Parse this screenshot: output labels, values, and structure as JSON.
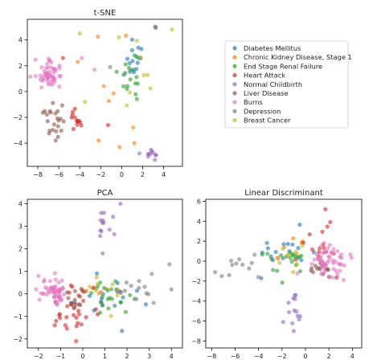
{
  "categories": [
    {
      "name": "Diabetes Mellitus",
      "color": "#1f77b4"
    },
    {
      "name": "Chronic Kidney Disease, Stage 1",
      "color": "#ff7f0e"
    },
    {
      "name": "End Stage Renal Failure",
      "color": "#2ca02c"
    },
    {
      "name": "Heart Attack",
      "color": "#d62728"
    },
    {
      "name": "Normal Childbirth",
      "color": "#9467bd"
    },
    {
      "name": "Liver Disease",
      "color": "#8c564b"
    },
    {
      "name": "Burns",
      "color": "#e377c2"
    },
    {
      "name": "Depression",
      "color": "#7f7f7f"
    },
    {
      "name": "Breast Cancer",
      "color": "#bcbd22"
    }
  ],
  "chart_data": [
    {
      "type": "scatter",
      "title": "t-SNE",
      "xlim": [
        -9,
        5.8
      ],
      "ylim": [
        -5.8,
        5.6
      ],
      "xticks": [
        -8,
        -6,
        -4,
        -2,
        0,
        2,
        4
      ],
      "yticks": [
        -4,
        -2,
        0,
        2,
        4
      ],
      "series": [
        {
          "clusters": [
            {
              "cx": 1.3,
              "cy": 2.5,
              "sx": 0.6,
              "sy": 1.2,
              "n": 12
            }
          ],
          "extra": [
            [
              1.0,
              3.2
            ],
            [
              1.6,
              3.4
            ],
            [
              0.2,
              1.3
            ]
          ]
        },
        {
          "clusters": [
            {
              "cx": -1.2,
              "cy": 1.2,
              "sx": 1.8,
              "sy": 2.0,
              "n": 6
            }
          ],
          "extra": [
            [
              1.2,
              -4.0
            ],
            [
              -0.2,
              -4.3
            ],
            [
              -2.2,
              -3.8
            ],
            [
              -4.2,
              2.3
            ]
          ]
        },
        {
          "clusters": [
            {
              "cx": 0.8,
              "cy": 1.8,
              "sx": 0.6,
              "sy": 1.2,
              "n": 14
            }
          ],
          "extra": [
            [
              1.6,
              2.6
            ],
            [
              0.5,
              0.2
            ]
          ]
        },
        {
          "clusters": [
            {
              "cx": -4.2,
              "cy": -2.3,
              "sx": 0.35,
              "sy": 0.35,
              "n": 12
            }
          ],
          "extra": [
            [
              -1.3,
              -2.6
            ],
            [
              -4.6,
              -2.9
            ],
            [
              -5.6,
              2.6
            ]
          ]
        },
        {
          "clusters": [
            {
              "cx": 2.9,
              "cy": -4.8,
              "sx": 0.3,
              "sy": 0.2,
              "n": 10
            }
          ],
          "extra": [
            [
              1.7,
              -4.8
            ]
          ]
        },
        {
          "clusters": [
            {
              "cx": -6.5,
              "cy": -2.5,
              "sx": 0.45,
              "sy": 0.8,
              "n": 22
            }
          ],
          "extra": [
            [
              -6.3,
              -3.8
            ]
          ]
        },
        {
          "clusters": [
            {
              "cx": -6.8,
              "cy": 1.2,
              "sx": 0.55,
              "sy": 0.55,
              "n": 55
            }
          ],
          "extra": [
            [
              -3.8,
              2.6
            ],
            [
              -2.6,
              1.7
            ]
          ]
        },
        {
          "clusters": [
            {
              "cx": 3.2,
              "cy": 5.0,
              "sx": 0.05,
              "sy": 0.05,
              "n": 3
            }
          ],
          "extra": [
            [
              -1.1,
              1.9
            ]
          ]
        },
        {
          "clusters": [
            {
              "cx": 1.4,
              "cy": 2.3,
              "sx": 1.0,
              "sy": 1.3,
              "n": 8
            }
          ],
          "extra": [
            [
              -4.0,
              4.5
            ],
            [
              4.8,
              4.8
            ],
            [
              -3.5,
              -0.8
            ]
          ]
        }
      ]
    },
    {
      "type": "scatter",
      "title": "PCA",
      "xlim": [
        -2.5,
        4.5
      ],
      "ylim": [
        -2.4,
        4.2
      ],
      "xticks": [
        -2,
        -1,
        0,
        1,
        2,
        3,
        4
      ],
      "yticks": [
        -2,
        -1,
        0,
        1,
        2,
        3,
        4
      ],
      "series": [
        {
          "clusters": [
            {
              "cx": 1.4,
              "cy": -0.2,
              "sx": 0.6,
              "sy": 0.4,
              "n": 18
            }
          ],
          "extra": []
        },
        {
          "clusters": [
            {
              "cx": 0.4,
              "cy": 0.2,
              "sx": 0.3,
              "sy": 0.4,
              "n": 6
            }
          ],
          "extra": []
        },
        {
          "clusters": [
            {
              "cx": 1.1,
              "cy": -0.1,
              "sx": 0.6,
              "sy": 0.35,
              "n": 20
            }
          ],
          "extra": []
        },
        {
          "clusters": [
            {
              "cx": -0.5,
              "cy": -0.8,
              "sx": 0.5,
              "sy": 0.55,
              "n": 32
            }
          ],
          "extra": []
        },
        {
          "clusters": [
            {
              "cx": 1.1,
              "cy": 3.0,
              "sx": 0.35,
              "sy": 0.4,
              "n": 12
            }
          ],
          "extra": [
            [
              1.7,
              4.0
            ],
            [
              0.9,
              1.8
            ]
          ]
        },
        {
          "clusters": [
            {
              "cx": -0.2,
              "cy": -0.3,
              "sx": 0.35,
              "sy": 0.35,
              "n": 14
            }
          ],
          "extra": []
        },
        {
          "clusters": [
            {
              "cx": -1.2,
              "cy": 0.1,
              "sx": 0.3,
              "sy": 0.3,
              "n": 55
            }
          ],
          "extra": [
            [
              -2.0,
              0.8
            ],
            [
              -2.1,
              0.2
            ]
          ]
        },
        {
          "clusters": [
            {
              "cx": 2.5,
              "cy": 0.3,
              "sx": 0.6,
              "sy": 0.3,
              "n": 14
            }
          ],
          "extra": [
            [
              4.0,
              0.2
            ],
            [
              3.2,
              -0.4
            ]
          ]
        },
        {
          "clusters": [
            {
              "cx": 1.0,
              "cy": 0.1,
              "sx": 0.7,
              "sy": 0.5,
              "n": 8
            }
          ],
          "extra": []
        }
      ]
    },
    {
      "type": "scatter",
      "title": "Linear Discriminant",
      "xlim": [
        -8.5,
        4.8
      ],
      "ylim": [
        -8.7,
        6.2
      ],
      "xticks": [
        -8,
        -6,
        -4,
        -2,
        0,
        2,
        4
      ],
      "yticks": [
        -8,
        -6,
        -4,
        -2,
        0,
        2,
        4,
        6
      ],
      "series": [
        {
          "clusters": [
            {
              "cx": -2.0,
              "cy": 1.0,
              "sx": 1.3,
              "sy": 1.1,
              "n": 18
            }
          ],
          "extra": []
        },
        {
          "clusters": [
            {
              "cx": -1.0,
              "cy": 0.5,
              "sx": 1.0,
              "sy": 1.0,
              "n": 8
            }
          ],
          "extra": []
        },
        {
          "clusters": [
            {
              "cx": -1.5,
              "cy": 0.2,
              "sx": 1.2,
              "sy": 1.0,
              "n": 18
            }
          ],
          "extra": []
        },
        {
          "clusters": [
            {
              "cx": 1.5,
              "cy": 1.8,
              "sx": 0.6,
              "sy": 1.5,
              "n": 14
            }
          ],
          "extra": [
            [
              1.7,
              5.2
            ]
          ]
        },
        {
          "clusters": [
            {
              "cx": -1.0,
              "cy": -4.8,
              "sx": 0.5,
              "sy": 0.8,
              "n": 12
            }
          ],
          "extra": [
            [
              -1.9,
              -6.1
            ],
            [
              -1.0,
              -7.0
            ]
          ]
        },
        {
          "clusters": [
            {
              "cx": 1.5,
              "cy": -0.8,
              "sx": 0.6,
              "sy": 0.5,
              "n": 16
            }
          ],
          "extra": []
        },
        {
          "clusters": [
            {
              "cx": 2.0,
              "cy": -0.1,
              "sx": 0.8,
              "sy": 0.9,
              "n": 55
            }
          ],
          "extra": []
        },
        {
          "clusters": [
            {
              "cx": -5.5,
              "cy": -0.3,
              "sx": 1.0,
              "sy": 0.5,
              "n": 10
            }
          ],
          "extra": [
            [
              -7.7,
              -1.1
            ],
            [
              -6.5,
              -1.4
            ]
          ]
        },
        {
          "clusters": [
            {
              "cx": -0.6,
              "cy": 1.2,
              "sx": 1.0,
              "sy": 1.0,
              "n": 8
            }
          ],
          "extra": []
        }
      ]
    }
  ]
}
